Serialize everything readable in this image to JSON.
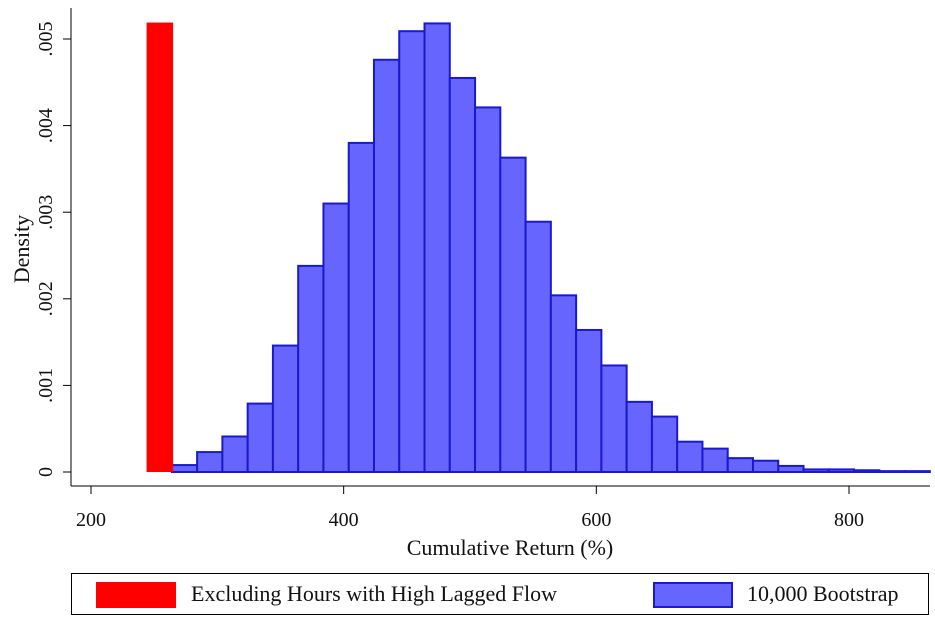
{
  "chart_data": {
    "type": "bar",
    "title": "",
    "xlabel": "Cumulative Return (%)",
    "ylabel": "Density",
    "xlim": [
      190,
      860
    ],
    "ylim": [
      -0.0001,
      0.00535
    ],
    "x_ticks": [
      200,
      400,
      600,
      800
    ],
    "x_tick_labels": [
      "200",
      "400",
      "600",
      "800"
    ],
    "y_ticks": [
      0,
      0.001,
      0.002,
      0.003,
      0.004,
      0.005
    ],
    "y_tick_labels": [
      "0",
      ".001",
      ".002",
      ".003",
      ".004",
      ".005"
    ],
    "legend_position": "bottom",
    "series": [
      {
        "name": "Excluding Hours with High Lagged Flow",
        "color": "#ff0000",
        "bars": [
          {
            "x0": 244,
            "x1": 265,
            "value": 0.00519
          }
        ]
      },
      {
        "name": "10,000 Bootstrap",
        "color": "#6666ff",
        "edge_color": "#1a1acc",
        "bin_width": 20,
        "bin_starts": [
          224,
          244,
          264,
          284,
          304,
          324,
          344,
          364,
          384,
          404,
          424,
          444,
          464,
          484,
          504,
          524,
          544,
          564,
          584,
          604,
          624,
          644,
          664,
          684,
          704,
          724,
          744,
          764,
          784,
          804,
          824,
          844
        ],
        "values": [
          0.0,
          0.0,
          8e-05,
          0.00023,
          0.00041,
          0.00079,
          0.00146,
          0.00238,
          0.0031,
          0.0038,
          0.00476,
          0.00509,
          0.00518,
          0.00455,
          0.00421,
          0.00363,
          0.00289,
          0.00204,
          0.00164,
          0.00123,
          0.00081,
          0.00064,
          0.00035,
          0.00027,
          0.00016,
          0.00013,
          7e-05,
          3e-05,
          3e-05,
          2e-05,
          1e-05,
          1e-05
        ]
      }
    ]
  },
  "legend": {
    "item1_label": "Excluding Hours with High Lagged Flow",
    "item2_label": "10,000 Bootstrap"
  }
}
